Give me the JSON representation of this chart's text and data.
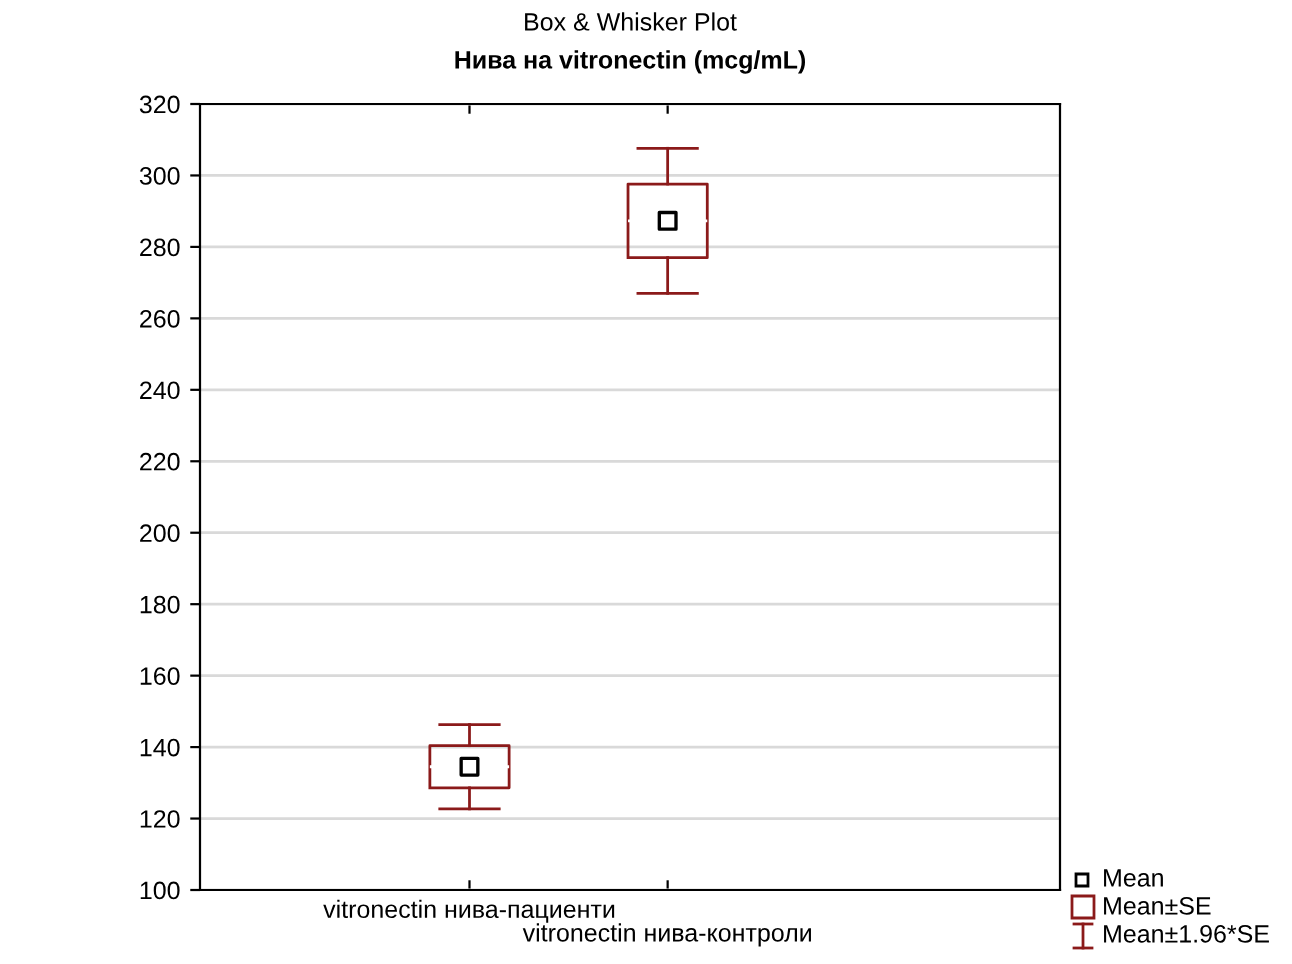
{
  "chart_data": {
    "type": "box",
    "title": "Box & Whisker Plot",
    "subtitle": "Нива на vitronectin (mcg/mL)",
    "categories": [
      "vitronectin нива-пациенти",
      "vitronectin нива-контроли"
    ],
    "boxes": [
      {
        "low": 122.7,
        "q1": 128.6,
        "median": 134.5,
        "q3": 140.4,
        "high": 146.3,
        "mean": 134.5
      },
      {
        "low": 267,
        "q1": 277,
        "median": 287.3,
        "q3": 297.6,
        "high": 307.6,
        "mean": 287.3
      }
    ],
    "color": "#8b1a1a",
    "ylim": [
      100,
      320
    ],
    "yticks": [
      100,
      120,
      140,
      160,
      180,
      200,
      220,
      240,
      260,
      280,
      300,
      320
    ],
    "grid": "y",
    "annotations": [
      "Mean",
      "Mean±SE",
      "Mean±1.96*SE"
    ]
  }
}
